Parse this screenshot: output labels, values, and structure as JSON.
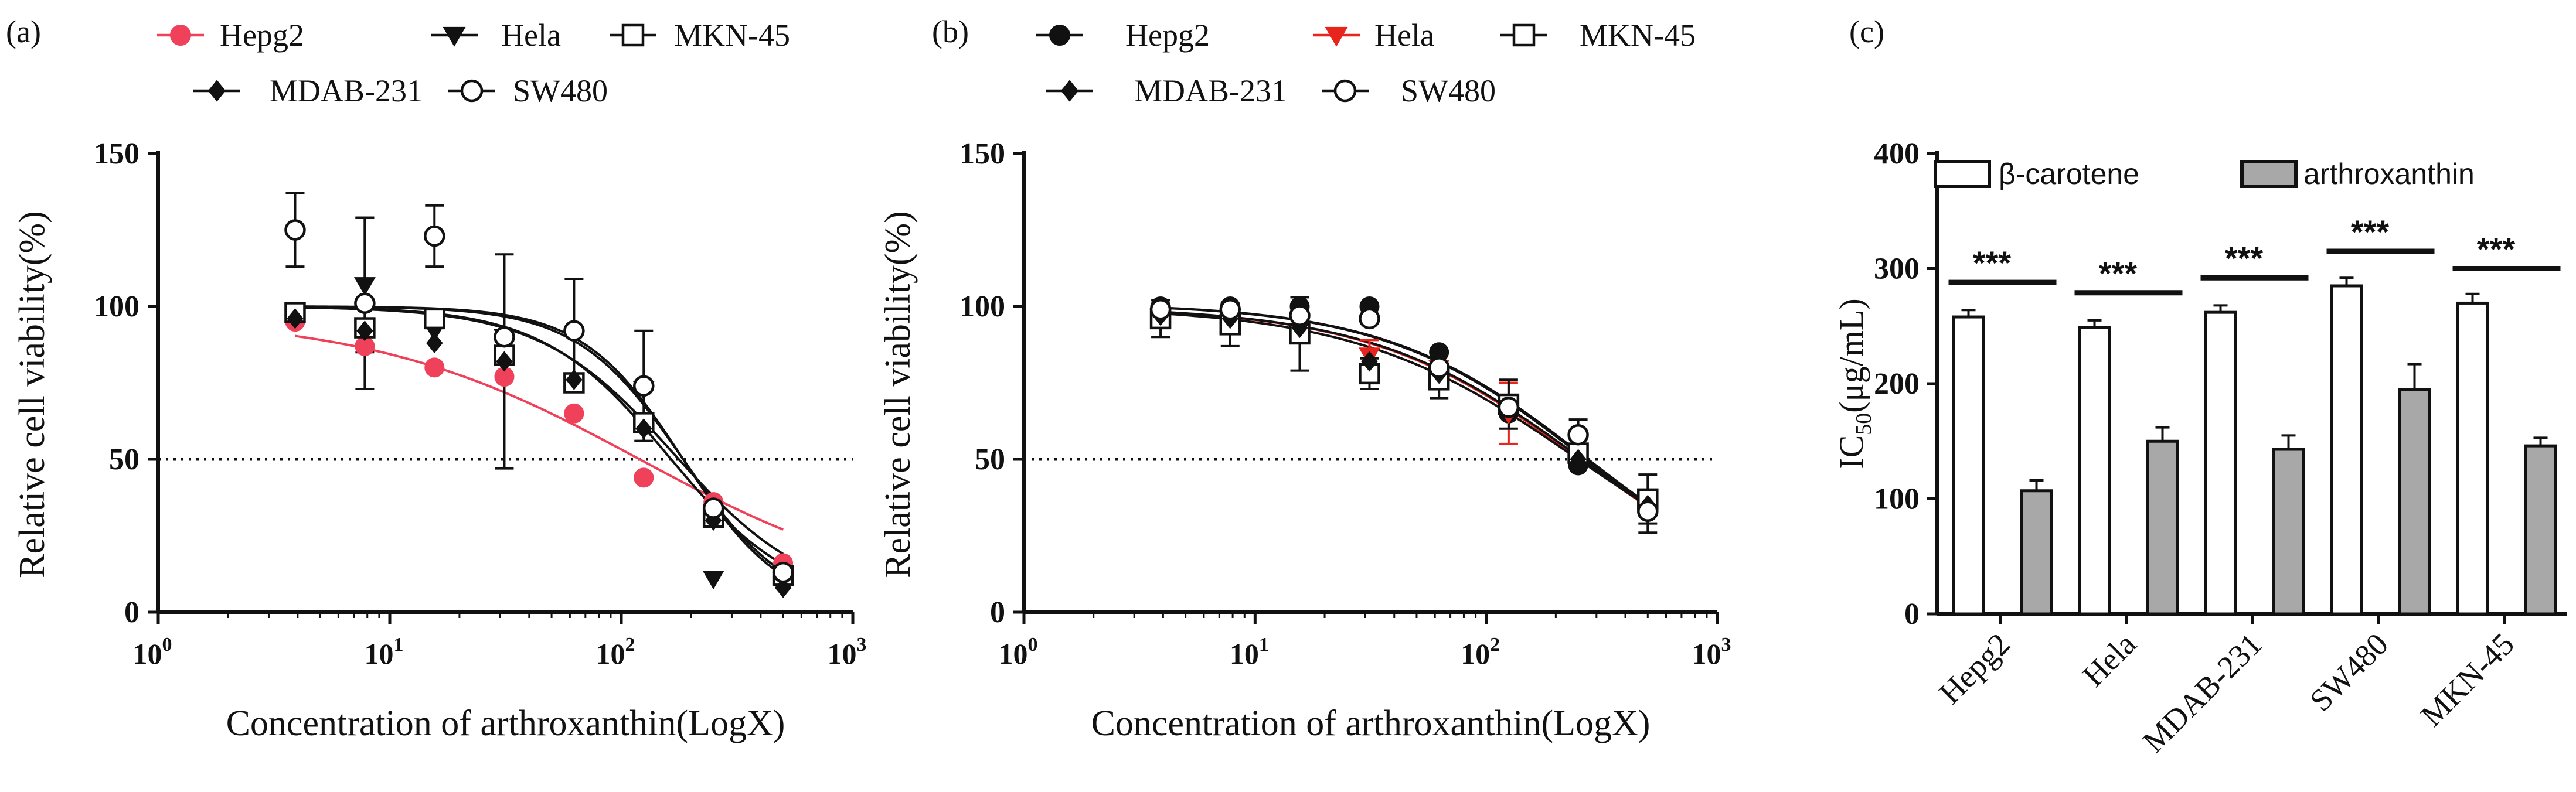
{
  "chart_data": [
    {
      "panel": "(a)",
      "type": "scatter",
      "title": "",
      "xlabel": "Concentration of arthroxanthin(LogX)",
      "ylabel": "Relative cell viability(%)",
      "xscale": "log",
      "xlim": [
        1,
        1000
      ],
      "ylim": [
        0,
        150
      ],
      "xticks": [
        {
          "base": "10",
          "exp": "0"
        },
        {
          "base": "10",
          "exp": "1"
        },
        {
          "base": "10",
          "exp": "2"
        },
        {
          "base": "10",
          "exp": "3"
        }
      ],
      "yticks": [
        "0",
        "50",
        "100",
        "150"
      ],
      "reference_line": 50,
      "legend_position": "top",
      "x": [
        3.9,
        7.8,
        15.6,
        31.25,
        62.5,
        125,
        250,
        500
      ],
      "series": [
        {
          "name": "Hepg2",
          "marker": "circle-filled",
          "color": "#f0415a",
          "values": [
            95,
            87,
            80,
            77,
            65,
            44,
            36,
            16
          ],
          "errors": [
            0,
            0,
            0,
            0,
            0,
            0,
            0,
            0
          ],
          "fit": {
            "top": 97,
            "bottom": 3,
            "ic50": 120,
            "hill": 0.75
          }
        },
        {
          "name": "Hela",
          "marker": "triangle-down",
          "color": "#111111",
          "values": [
            97,
            107,
            92,
            90,
            75,
            73,
            11,
            9
          ],
          "errors": [
            0,
            22,
            0,
            0,
            0,
            0,
            0,
            0
          ],
          "fit": {
            "top": 100,
            "bottom": 0,
            "ic50": 185,
            "hill": 1.9
          }
        },
        {
          "name": "MKN-45",
          "marker": "square-open",
          "color": "#111111",
          "values": [
            98,
            93,
            96,
            84,
            75,
            62,
            31,
            12
          ],
          "errors": [
            0,
            0,
            0,
            0,
            0,
            0,
            0,
            0
          ],
          "fit": {
            "top": 100,
            "bottom": 3,
            "ic50": 170,
            "hill": 1.5
          }
        },
        {
          "name": "MDAB-231",
          "marker": "diamond",
          "color": "#111111",
          "values": [
            96,
            92,
            88,
            82,
            76,
            60,
            30,
            8
          ],
          "errors": [
            0,
            0,
            0,
            35,
            0,
            0,
            0,
            0
          ],
          "fit": {
            "top": 100,
            "bottom": 2,
            "ic50": 160,
            "hill": 1.6
          }
        },
        {
          "name": "SW480",
          "marker": "circle-open",
          "color": "#111111",
          "values": [
            125,
            101,
            123,
            90,
            92,
            74,
            34,
            13
          ],
          "errors": [
            12,
            28,
            10,
            0,
            17,
            18,
            0,
            0
          ],
          "fit": {
            "top": 100,
            "bottom": 0,
            "ic50": 185,
            "hill": 2.0
          }
        }
      ]
    },
    {
      "panel": "(b)",
      "type": "scatter",
      "title": "",
      "xlabel": "Concentration of arthroxanthin(LogX)",
      "ylabel": "Relative cell viability(%)",
      "xscale": "log",
      "xlim": [
        1,
        1000
      ],
      "ylim": [
        0,
        150
      ],
      "xticks": [
        {
          "base": "10",
          "exp": "0"
        },
        {
          "base": "10",
          "exp": "1"
        },
        {
          "base": "10",
          "exp": "2"
        },
        {
          "base": "10",
          "exp": "3"
        }
      ],
      "yticks": [
        "0",
        "50",
        "100",
        "150"
      ],
      "reference_line": 50,
      "legend_position": "top",
      "x": [
        3.9,
        7.8,
        15.6,
        31.25,
        62.5,
        125,
        250,
        500
      ],
      "series": [
        {
          "name": "Hepg2",
          "marker": "circle-filled",
          "color": "#111111",
          "values": [
            100,
            100,
            100,
            100,
            85,
            65,
            48,
            35
          ],
          "errors": [
            0,
            0,
            0,
            0,
            0,
            0,
            0,
            0
          ],
          "fit": {
            "top": 101,
            "bottom": 0,
            "ic50": 270,
            "hill": 1.0
          }
        },
        {
          "name": "Hela",
          "marker": "triangle-down",
          "color": "#e8251c",
          "values": [
            98,
            97,
            95,
            84,
            80,
            65,
            52,
            33
          ],
          "errors": [
            0,
            0,
            0,
            5,
            0,
            10,
            0,
            0
          ],
          "fit": {
            "top": 100,
            "bottom": 0,
            "ic50": 255,
            "hill": 0.95
          }
        },
        {
          "name": "MKN-45",
          "marker": "square-open",
          "color": "#111111",
          "values": [
            96,
            94,
            91,
            78,
            76,
            68,
            52,
            37
          ],
          "errors": [
            6,
            7,
            12,
            5,
            6,
            8,
            0,
            8
          ],
          "fit": {
            "top": 100,
            "bottom": 0,
            "ic50": 250,
            "hill": 0.9
          }
        },
        {
          "name": "MDAB-231",
          "marker": "diamond",
          "color": "#111111",
          "values": [
            97,
            96,
            93,
            82,
            78,
            67,
            50,
            35
          ],
          "errors": [
            0,
            0,
            0,
            0,
            0,
            0,
            0,
            0
          ],
          "fit": {
            "top": 100,
            "bottom": 0,
            "ic50": 260,
            "hill": 0.95
          }
        },
        {
          "name": "SW480",
          "marker": "circle-open",
          "color": "#111111",
          "values": [
            99,
            99,
            97,
            96,
            80,
            67,
            58,
            33
          ],
          "errors": [
            0,
            0,
            0,
            0,
            0,
            0,
            5,
            7
          ],
          "fit": {
            "top": 101,
            "bottom": 0,
            "ic50": 265,
            "hill": 1.0
          }
        }
      ]
    },
    {
      "panel": "(c)",
      "type": "bar",
      "title": "",
      "xlabel": "",
      "ylabel_main": "IC",
      "ylabel_sub": "50",
      "ylabel_unit": "(μg/mL)",
      "ylim": [
        0,
        400
      ],
      "yticks": [
        "0",
        "100",
        "200",
        "300",
        "400"
      ],
      "categories": [
        "Hepg2",
        "Hela",
        "MDAB-231",
        "SW480",
        "MKN-45"
      ],
      "legend_position": "top",
      "significance": [
        "***",
        "***",
        "***",
        "***",
        "***"
      ],
      "series": [
        {
          "name": "β-carotene",
          "fill": "#ffffff",
          "values": [
            258,
            249,
            262,
            285,
            270
          ],
          "errors": [
            6,
            6,
            6,
            7,
            8
          ]
        },
        {
          "name": "arthroxanthin",
          "fill": "#a8a8a8",
          "values": [
            107,
            150,
            143,
            195,
            146
          ],
          "errors": [
            9,
            12,
            12,
            22,
            7
          ]
        }
      ]
    }
  ]
}
